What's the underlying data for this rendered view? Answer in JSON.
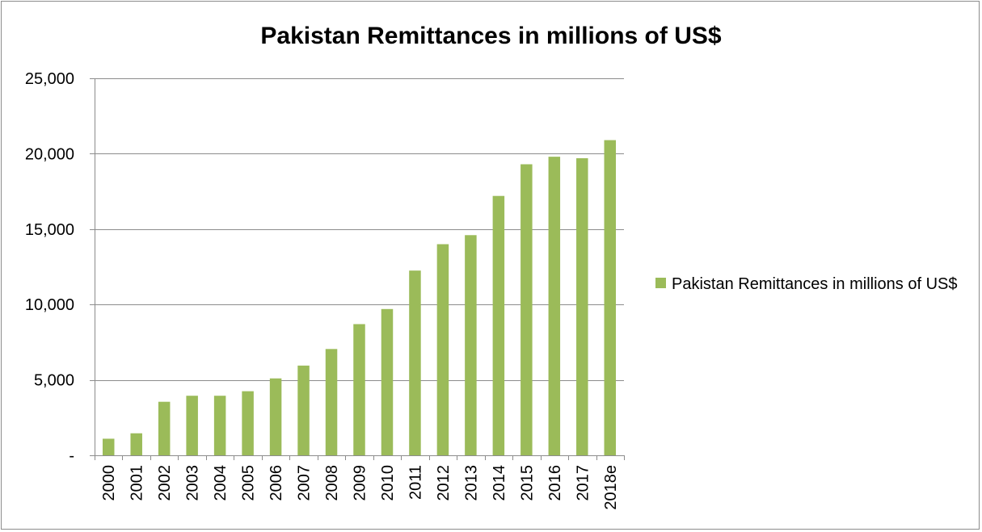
{
  "chart_data": {
    "type": "bar",
    "title": "Pakistan Remittances in millions of US$",
    "xlabel": "",
    "ylabel": "",
    "categories": [
      "2000",
      "2001",
      "2002",
      "2003",
      "2004",
      "2005",
      "2006",
      "2007",
      "2008",
      "2009",
      "2010",
      "2011",
      "2012",
      "2013",
      "2014",
      "2015",
      "2016",
      "2017",
      "2018e"
    ],
    "series": [
      {
        "name": "Pakistan Remittances in millions of US$",
        "color": "#9bbb59",
        "values": [
          1100,
          1460,
          3550,
          3950,
          3950,
          4250,
          5100,
          5950,
          7050,
          8700,
          9700,
          12250,
          14000,
          14600,
          17200,
          19300,
          19800,
          19700,
          20900
        ]
      }
    ],
    "ylim": [
      0,
      25000
    ],
    "yticks": [
      0,
      5000,
      10000,
      15000,
      20000,
      25000
    ],
    "ytick_labels": [
      "-",
      "5,000",
      "10,000",
      "15,000",
      "20,000",
      "25,000"
    ],
    "grid": true,
    "legend_position": "right"
  }
}
